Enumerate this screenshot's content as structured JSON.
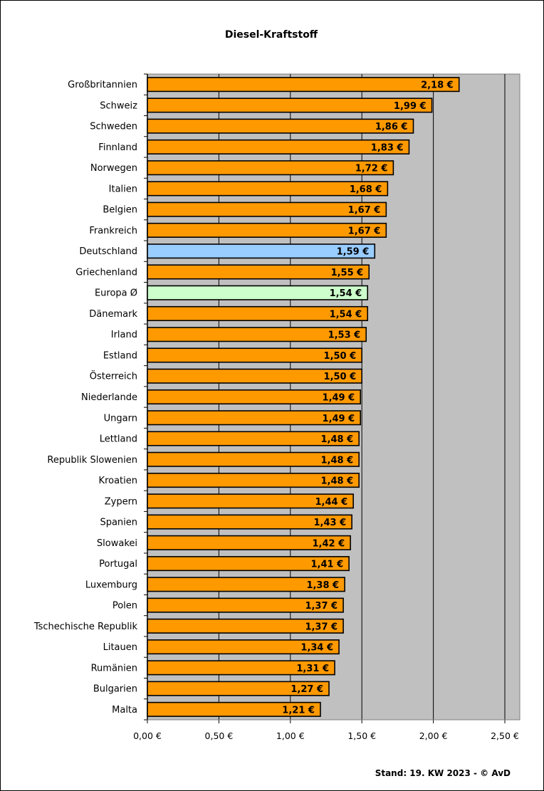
{
  "chart_data": {
    "type": "bar",
    "orientation": "horizontal",
    "title": "Diesel-Kraftstoff",
    "categories": [
      "Großbritannien",
      "Schweiz",
      "Schweden",
      "Finnland",
      "Norwegen",
      "Italien",
      "Belgien",
      "Frankreich",
      "Deutschland",
      "Griechenland",
      "Europa Ø",
      "Dänemark",
      "Irland",
      "Estland",
      "Österreich",
      "Niederlande",
      "Ungarn",
      "Lettland",
      "Republik Slowenien",
      "Kroatien",
      "Zypern",
      "Spanien",
      "Slowakei",
      "Portugal",
      "Luxemburg",
      "Polen",
      "Tschechische Republik",
      "Litauen",
      "Rumänien",
      "Bulgarien",
      "Malta"
    ],
    "values": [
      2.18,
      1.99,
      1.86,
      1.83,
      1.72,
      1.68,
      1.67,
      1.67,
      1.59,
      1.55,
      1.54,
      1.54,
      1.53,
      1.5,
      1.5,
      1.49,
      1.49,
      1.48,
      1.48,
      1.48,
      1.44,
      1.43,
      1.42,
      1.41,
      1.38,
      1.37,
      1.37,
      1.34,
      1.31,
      1.27,
      1.21
    ],
    "value_labels": [
      "2,18 €",
      "1,99 €",
      "1,86 €",
      "1,83 €",
      "1,72 €",
      "1,68 €",
      "1,67 €",
      "1,67 €",
      "1,59 €",
      "1,55 €",
      "1,54 €",
      "1,54 €",
      "1,53 €",
      "1,50 €",
      "1,50 €",
      "1,49 €",
      "1,49 €",
      "1,48 €",
      "1,48 €",
      "1,48 €",
      "1,44 €",
      "1,43 €",
      "1,42 €",
      "1,41 €",
      "1,38 €",
      "1,37 €",
      "1,37 €",
      "1,34 €",
      "1,31 €",
      "1,27 €",
      "1,21 €"
    ],
    "xlim": [
      0,
      2.5
    ],
    "xticks": [
      0,
      0.5,
      1.0,
      1.5,
      2.0,
      2.5
    ],
    "xtick_labels": [
      "0,00 €",
      "0,50 €",
      "1,00 €",
      "1,50 €",
      "2,00 €",
      "2,50 €"
    ],
    "grid": true,
    "colors": {
      "default": "#FF9900",
      "Deutschland": "#99CCFF",
      "Europa Ø": "#CCFFCC",
      "plot_background": "#C0C0C0"
    },
    "footnote": "Stand: 19. KW 2023 - © AvD"
  }
}
